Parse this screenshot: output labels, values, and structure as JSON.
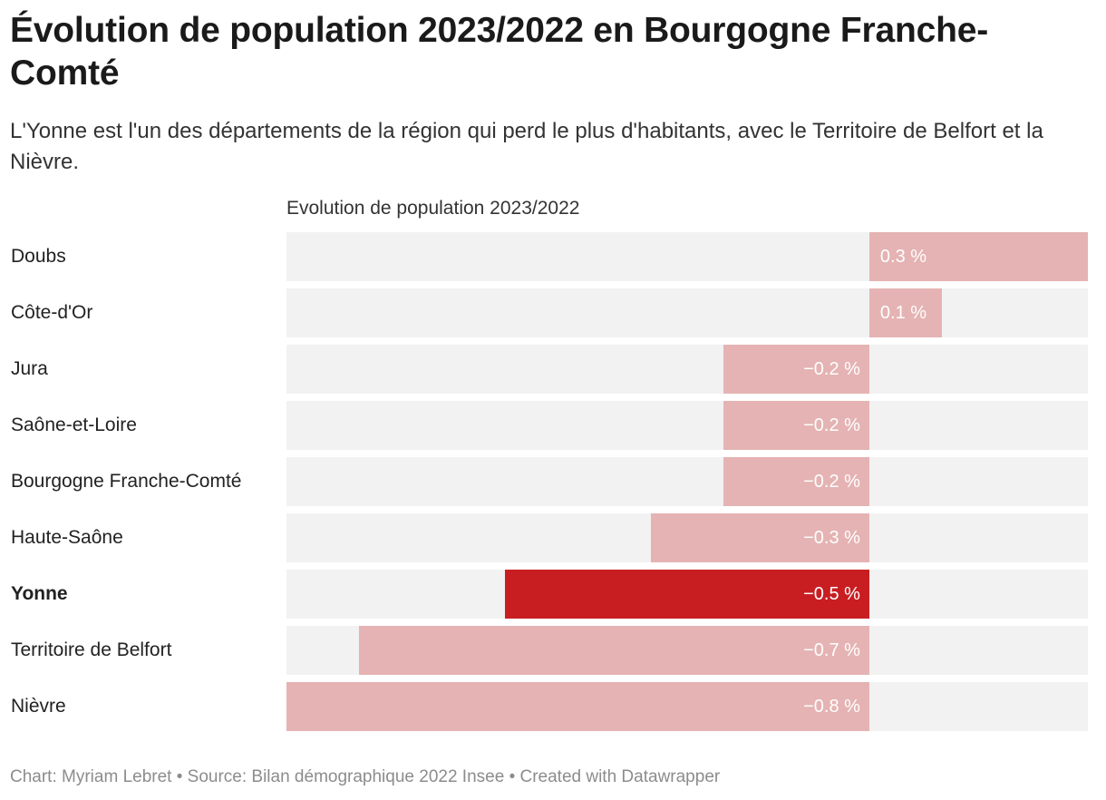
{
  "title": "Évolution de population 2023/2022 en Bourgogne Franche-Comté",
  "subtitle": "L'Yonne est l'un des départements de la région qui perd le plus d'habitants, avec le Territoire de Belfort et la Nièvre.",
  "footer": "Chart: Myriam Lebret • Source: Bilan démographique 2022 Insee • Created with Datawrapper",
  "colors": {
    "highlight": "#c81e22",
    "normal": "#e5b3b3",
    "track": "#f2f2f2"
  },
  "chart_data": {
    "type": "bar",
    "orientation": "horizontal",
    "column_header": "Evolution de population 2023/2022",
    "xlim": [
      -0.8,
      0.3
    ],
    "categories": [
      "Doubs",
      "Côte-d'Or",
      "Jura",
      "Saône-et-Loire",
      "Bourgogne Franche-Comté",
      "Haute-Saône",
      "Yonne",
      "Territoire de Belfort",
      "Nièvre"
    ],
    "values": [
      0.3,
      0.1,
      -0.2,
      -0.2,
      -0.2,
      -0.3,
      -0.5,
      -0.7,
      -0.8
    ],
    "value_labels": [
      "0.3 %",
      "0.1 %",
      "−0.2 %",
      "−0.2 %",
      "−0.2 %",
      "−0.3 %",
      "−0.5 %",
      "−0.7 %",
      "−0.8 %"
    ],
    "highlighted": [
      "Yonne"
    ]
  }
}
